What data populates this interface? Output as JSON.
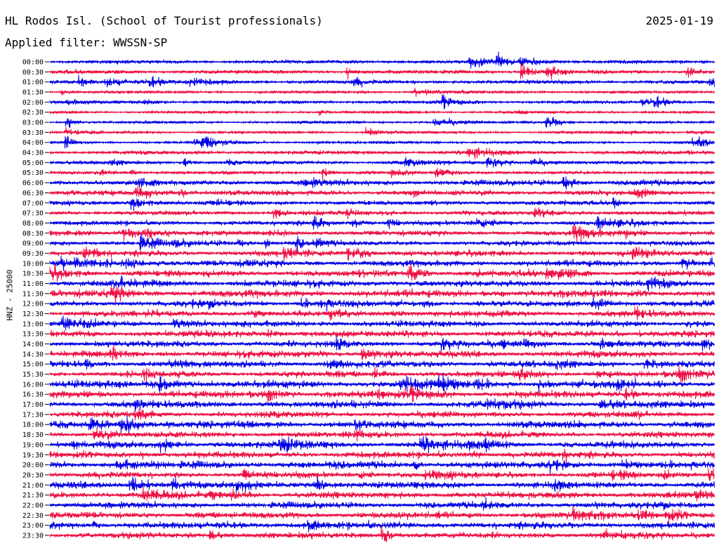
{
  "header": {
    "station": "HL Rodos Isl. (School of Tourist professionals)",
    "date": "2025-01-19",
    "filter": "Applied filter: WWSSN-SP"
  },
  "chart_data": {
    "type": "line",
    "ylabel": "HNZ - 25000",
    "colors": [
      "#0000e6",
      "#ee1144"
    ],
    "grid": false,
    "rows": [
      "00:00",
      "00:30",
      "01:00",
      "01:30",
      "02:00",
      "02:30",
      "03:00",
      "03:30",
      "04:00",
      "04:30",
      "05:00",
      "05:30",
      "06:00",
      "06:30",
      "07:00",
      "07:30",
      "08:00",
      "08:30",
      "09:00",
      "09:30",
      "10:00",
      "10:30",
      "11:00",
      "11:30",
      "12:00",
      "12:30",
      "13:00",
      "13:30",
      "14:00",
      "14:30",
      "15:00",
      "15:30",
      "16:00",
      "16:30",
      "17:00",
      "17:30",
      "18:00",
      "18:30",
      "19:00",
      "19:30",
      "20:00",
      "20:30",
      "21:00",
      "21:30",
      "22:00",
      "22:30",
      "23:00",
      "23:30"
    ]
  }
}
